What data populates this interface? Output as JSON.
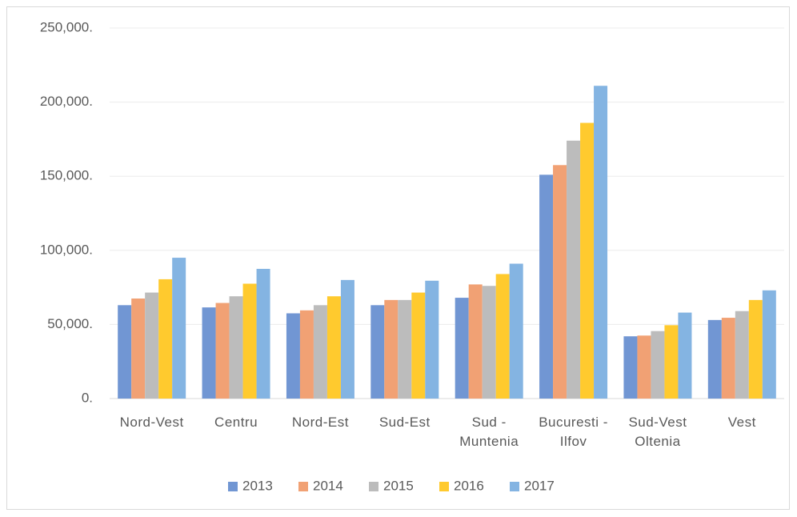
{
  "chart_data": {
    "type": "bar",
    "categories": [
      "Nord-Vest",
      "Centru",
      "Nord-Est",
      "Sud-Est",
      "Sud - Muntenia",
      "Bucuresti - Ilfov",
      "Sud-Vest Oltenia",
      "Vest"
    ],
    "series": [
      {
        "name": "2013",
        "color": "#7196d3",
        "values": [
          63000,
          61500,
          57500,
          63000,
          68000,
          151000,
          42000,
          53000
        ]
      },
      {
        "name": "2014",
        "color": "#f1a174",
        "values": [
          67500,
          64500,
          59500,
          66500,
          77000,
          157500,
          42500,
          54500
        ]
      },
      {
        "name": "2015",
        "color": "#bcbcbc",
        "values": [
          71500,
          69000,
          63000,
          66500,
          76000,
          174000,
          45500,
          59000
        ]
      },
      {
        "name": "2016",
        "color": "#ffca2e",
        "values": [
          80500,
          77500,
          69000,
          71500,
          84000,
          186000,
          49500,
          66500
        ]
      },
      {
        "name": "2017",
        "color": "#84b4e2",
        "values": [
          95000,
          87500,
          80000,
          79500,
          91000,
          211000,
          58000,
          73000
        ]
      }
    ],
    "ylim": [
      0,
      250000
    ],
    "yticks": [
      {
        "value": 0,
        "label": "0."
      },
      {
        "value": 50000,
        "label": "50,000."
      },
      {
        "value": 100000,
        "label": "100,000."
      },
      {
        "value": 150000,
        "label": "150,000."
      },
      {
        "value": 200000,
        "label": "200,000."
      },
      {
        "value": 250000,
        "label": "250,000."
      }
    ],
    "grid": true,
    "legend": "bottom"
  }
}
